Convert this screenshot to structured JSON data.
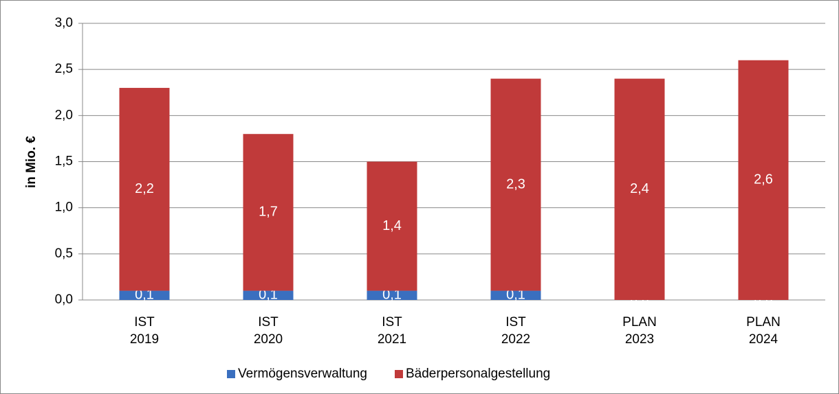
{
  "chart_data": {
    "type": "stacked_bar",
    "y_label": "in Mio. €",
    "categories": [
      [
        "IST",
        "2019"
      ],
      [
        "IST",
        "2020"
      ],
      [
        "IST",
        "2021"
      ],
      [
        "IST",
        "2022"
      ],
      [
        "PLAN",
        "2023"
      ],
      [
        "PLAN",
        "2024"
      ]
    ],
    "series": [
      {
        "name": "Vermögensverwaltung",
        "color": "#3a6fbf",
        "values": [
          0.1,
          0.1,
          0.1,
          0.1,
          0,
          0
        ],
        "value_labels": [
          "0,1",
          "0,1",
          "0,1",
          "0,1",
          "0,0",
          "0,0"
        ]
      },
      {
        "name": "Bäderpersonalgestellung",
        "color": "#c03a3a",
        "values": [
          2.2,
          1.7,
          1.4,
          2.3,
          2.4,
          2.6
        ],
        "value_labels": [
          "2,2",
          "1,7",
          "1,4",
          "2,3",
          "2,4",
          "2,6"
        ]
      }
    ],
    "ylim": [
      0,
      3
    ],
    "yticks": [
      {
        "value": 0,
        "label": "0,0"
      },
      {
        "value": 0.5,
        "label": "0,5"
      },
      {
        "value": 1,
        "label": "1,0"
      },
      {
        "value": 1.5,
        "label": "1,5"
      },
      {
        "value": 2,
        "label": "2,0"
      },
      {
        "value": 2.5,
        "label": "2,5"
      },
      {
        "value": 3,
        "label": "3,0"
      }
    ],
    "grid": true,
    "legend": "bottom"
  }
}
